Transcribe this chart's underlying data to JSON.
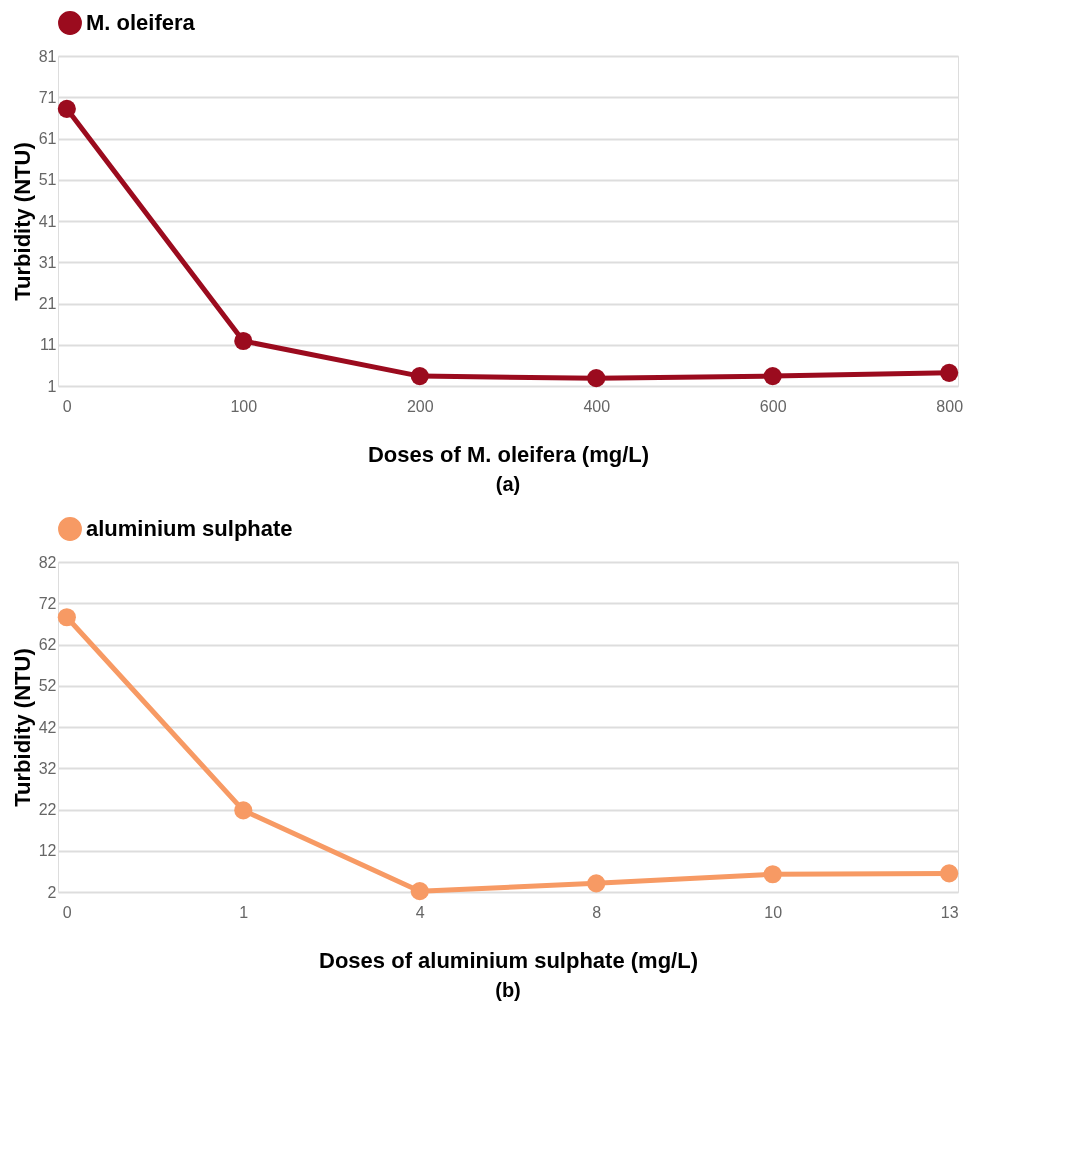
{
  "chart_data": [
    {
      "type": "line",
      "categories": [
        "0",
        "100",
        "200",
        "400",
        "600",
        "800"
      ],
      "xlabel": "Doses of M. oleifera (mg/L)",
      "ylabel": "Turbidity (NTU)",
      "ylim": [
        1,
        81
      ],
      "yticks": [
        1,
        11,
        21,
        31,
        41,
        51,
        61,
        71,
        81
      ],
      "grid": "y",
      "legend": "top",
      "marker": "circle",
      "line_style": "solid",
      "annotations": [
        "(a)"
      ],
      "series": [
        {
          "name": "M. oleifera",
          "color": "#9b0b1e",
          "values": [
            68.2,
            11.9,
            3.4,
            2.9,
            3.4,
            4.2
          ]
        }
      ]
    },
    {
      "type": "line",
      "categories": [
        "0",
        "1",
        "4",
        "8",
        "10",
        "13"
      ],
      "xlabel": "Doses of aluminium sulphate (mg/L)",
      "ylabel": "Turbidity (NTU)",
      "ylim": [
        2,
        82
      ],
      "yticks": [
        2,
        12,
        22,
        32,
        42,
        52,
        62,
        72,
        82
      ],
      "grid": "y",
      "legend": "top",
      "marker": "circle",
      "line_style": "solid",
      "annotations": [
        "(b)"
      ],
      "series": [
        {
          "name": "aluminium sulphate",
          "color": "#f79a64",
          "values": [
            68.6,
            21.8,
            2.2,
            4.1,
            6.3,
            6.5
          ]
        }
      ]
    }
  ]
}
